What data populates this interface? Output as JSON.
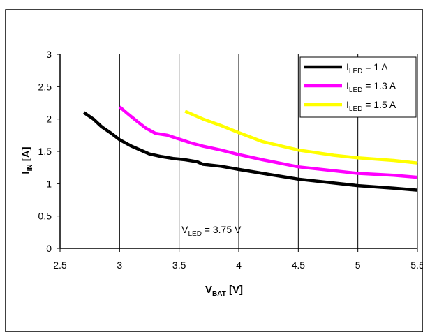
{
  "chart_data": {
    "type": "line",
    "xlabel": {
      "main": "V",
      "sub": "BAT",
      "unit": " [V]"
    },
    "ylabel": {
      "main": "I",
      "sub": "IN",
      "unit": " [A]"
    },
    "xlim": [
      2.5,
      5.5
    ],
    "ylim": [
      0,
      3
    ],
    "xticks": [
      2.5,
      3,
      3.5,
      4,
      4.5,
      5,
      5.5
    ],
    "xtick_labels": [
      "2.5",
      "3",
      "3.5",
      "4",
      "4.5",
      "5",
      "5.5"
    ],
    "yticks": [
      0,
      0.5,
      1,
      1.5,
      2,
      2.5,
      3
    ],
    "ytick_labels": [
      "0",
      "0.5",
      "1",
      "1.5",
      "2",
      "2.5",
      "3"
    ],
    "grid": "vertical",
    "legend_position": "top-right",
    "annotation": {
      "main": "V",
      "sub": "LED",
      "rest": " = 3.75 V",
      "x": 3.77,
      "y": 0.24
    },
    "series": [
      {
        "name": "I_LED = 1 A",
        "label_main": "I",
        "label_sub": "LED",
        "label_rest": " = 1 A",
        "color": "#000000",
        "x": [
          2.7,
          2.78,
          2.85,
          2.93,
          3.0,
          3.1,
          3.2,
          3.25,
          3.35,
          3.45,
          3.55,
          3.65,
          3.7,
          3.85,
          4.0,
          4.2,
          4.5,
          4.8,
          5.0,
          5.3,
          5.5
        ],
        "y": [
          2.1,
          2.0,
          1.88,
          1.78,
          1.68,
          1.58,
          1.5,
          1.46,
          1.42,
          1.39,
          1.37,
          1.34,
          1.3,
          1.27,
          1.22,
          1.16,
          1.07,
          1.01,
          0.97,
          0.93,
          0.9
        ]
      },
      {
        "name": "I_LED = 1.3 A",
        "label_main": "I",
        "label_sub": "LED",
        "label_rest": " = 1.3 A",
        "color": "#ff00ff",
        "x": [
          3.0,
          3.07,
          3.15,
          3.22,
          3.3,
          3.4,
          3.5,
          3.6,
          3.7,
          3.85,
          4.0,
          4.2,
          4.5,
          4.8,
          5.0,
          5.3,
          5.5
        ],
        "y": [
          2.19,
          2.08,
          1.96,
          1.86,
          1.78,
          1.75,
          1.69,
          1.63,
          1.58,
          1.52,
          1.45,
          1.37,
          1.26,
          1.2,
          1.16,
          1.13,
          1.1
        ]
      },
      {
        "name": "I_LED = 1.5 A",
        "label_main": "I",
        "label_sub": "LED",
        "label_rest": " = 1.5 A",
        "color": "#ffff00",
        "x": [
          3.55,
          3.7,
          3.85,
          4.0,
          4.2,
          4.5,
          4.8,
          5.0,
          5.3,
          5.5
        ],
        "y": [
          2.12,
          2.0,
          1.9,
          1.79,
          1.65,
          1.52,
          1.44,
          1.4,
          1.36,
          1.32
        ]
      }
    ]
  }
}
